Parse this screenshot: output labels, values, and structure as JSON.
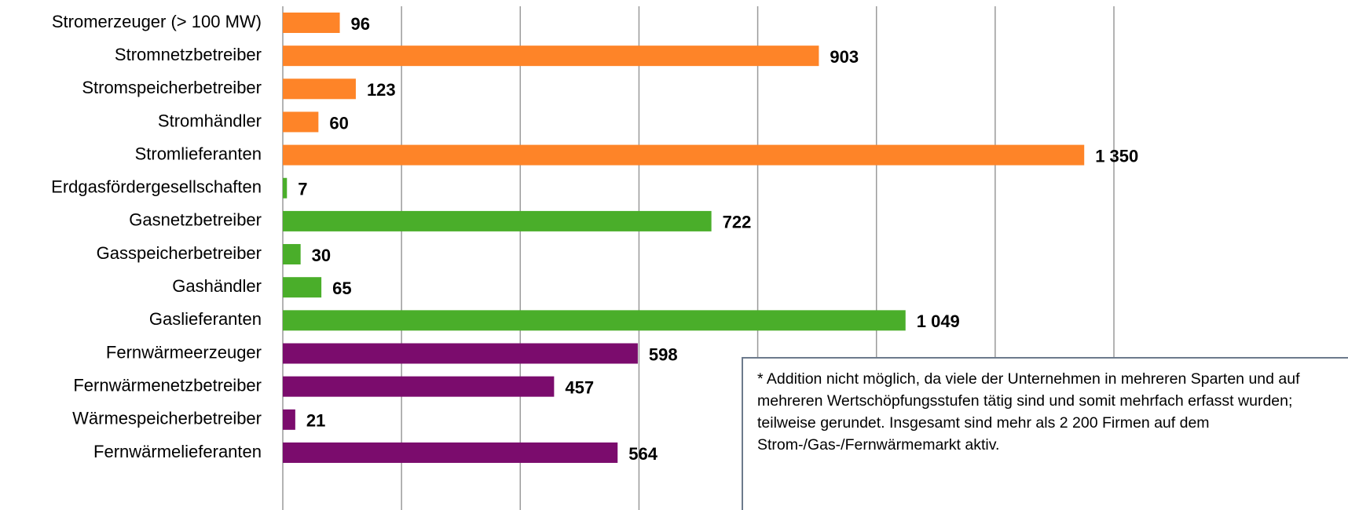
{
  "chart_data": {
    "type": "bar",
    "orientation": "horizontal",
    "categories": [
      "Stromerzeuger (> 100 MW)",
      "Stromnetzbetreiber",
      "Stromspeicherbetreiber",
      "Stromhändler",
      "Stromlieferanten",
      "Erdgasfördergesellschaften",
      "Gasnetzbetreiber",
      "Gasspeicherbetreiber",
      "Gashändler",
      "Gaslieferanten",
      "Fernwärmeerzeuger",
      "Fernwärmenetzbetreiber",
      "Wärmespeicherbetreiber",
      "Fernwärmelieferanten"
    ],
    "values": [
      96,
      903,
      123,
      60,
      1350,
      7,
      722,
      30,
      65,
      1049,
      598,
      457,
      21,
      564
    ],
    "value_labels": [
      "96",
      "903",
      "123",
      "60",
      "1 350",
      "7",
      "722",
      "30",
      "65",
      "1 049",
      "598",
      "457",
      "21",
      "564"
    ],
    "colors": [
      "#fe8428",
      "#fe8428",
      "#fe8428",
      "#fe8428",
      "#fe8428",
      "#4aae2a",
      "#4aae2a",
      "#4aae2a",
      "#4aae2a",
      "#4aae2a",
      "#7b0c6d",
      "#7b0c6d",
      "#7b0c6d",
      "#7b0c6d"
    ],
    "xlim": [
      0,
      1400
    ],
    "xticks": [
      0,
      200,
      400,
      600,
      800,
      1000,
      1200,
      1400
    ],
    "grid": true,
    "annotation": "* Addition nicht möglich, da viele der Unternehmen in mehreren Sparten und auf mehreren Wertschöpfungsstufen tätig sind und somit mehrfach erfasst wurden; teilweise gerundet. Insgesamt sind mehr als 2 200 Firmen auf dem Strom-/Gas-/Fernwärmemarkt aktiv."
  }
}
